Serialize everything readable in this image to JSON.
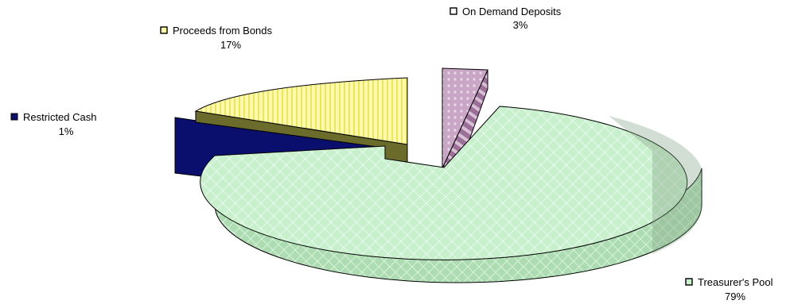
{
  "chart_data": {
    "type": "pie",
    "style": "3d-exploded",
    "labels_shown": "category and percent beside each slice, with a small colored marker",
    "slices": [
      {
        "name": "Treasurer's Pool",
        "value": 79,
        "percent": "79%",
        "color": "#c9f0cd"
      },
      {
        "name": "Proceeds from Bonds",
        "value": 17,
        "percent": "17%",
        "color": "#fdfba8"
      },
      {
        "name": "Restricted Cash",
        "value": 1,
        "percent": "1%",
        "color": "#0a0f6e"
      },
      {
        "name": "On Demand Deposits",
        "value": 3,
        "percent": "3%",
        "color": "#c9a6c6"
      }
    ]
  }
}
